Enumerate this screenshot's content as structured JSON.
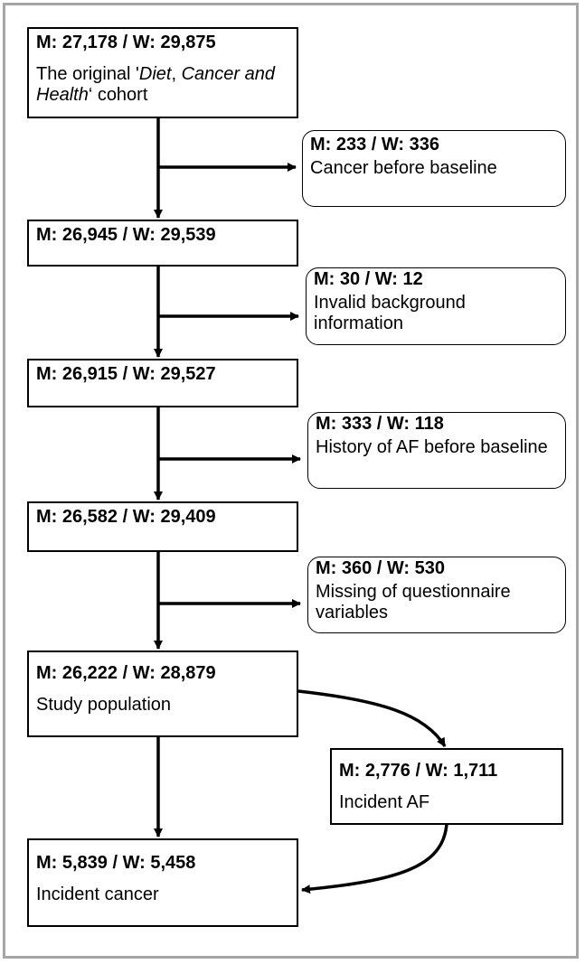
{
  "nodes": [
    {
      "count": "M: 27,178 / W: 29,875",
      "label": [
        "The original '",
        "Diet",
        ", ",
        "Cancer and Health",
        "‘ cohort"
      ]
    },
    {
      "count": "M: 233 / W: 336",
      "label": "Cancer before baseline"
    },
    {
      "count": "M: 26,945 / W: 29,539"
    },
    {
      "count": "M: 30 / W: 12",
      "label": "Invalid background information"
    },
    {
      "count": "M: 26,915 / W: 29,527"
    },
    {
      "count": "M: 333 / W: 118",
      "label": "History of AF before baseline"
    },
    {
      "count": "M: 26,582 / W: 29,409"
    },
    {
      "count": "M: 360 / W: 530",
      "label": "Missing of questionnaire variables"
    },
    {
      "count": "M: 26,222 / W: 28,879",
      "label": "Study population"
    },
    {
      "count": "M: 2,776 / W: 1,711",
      "label": "Incident AF"
    },
    {
      "count": "M: 5,839 / W: 5,458",
      "label": "Incident cancer"
    }
  ]
}
